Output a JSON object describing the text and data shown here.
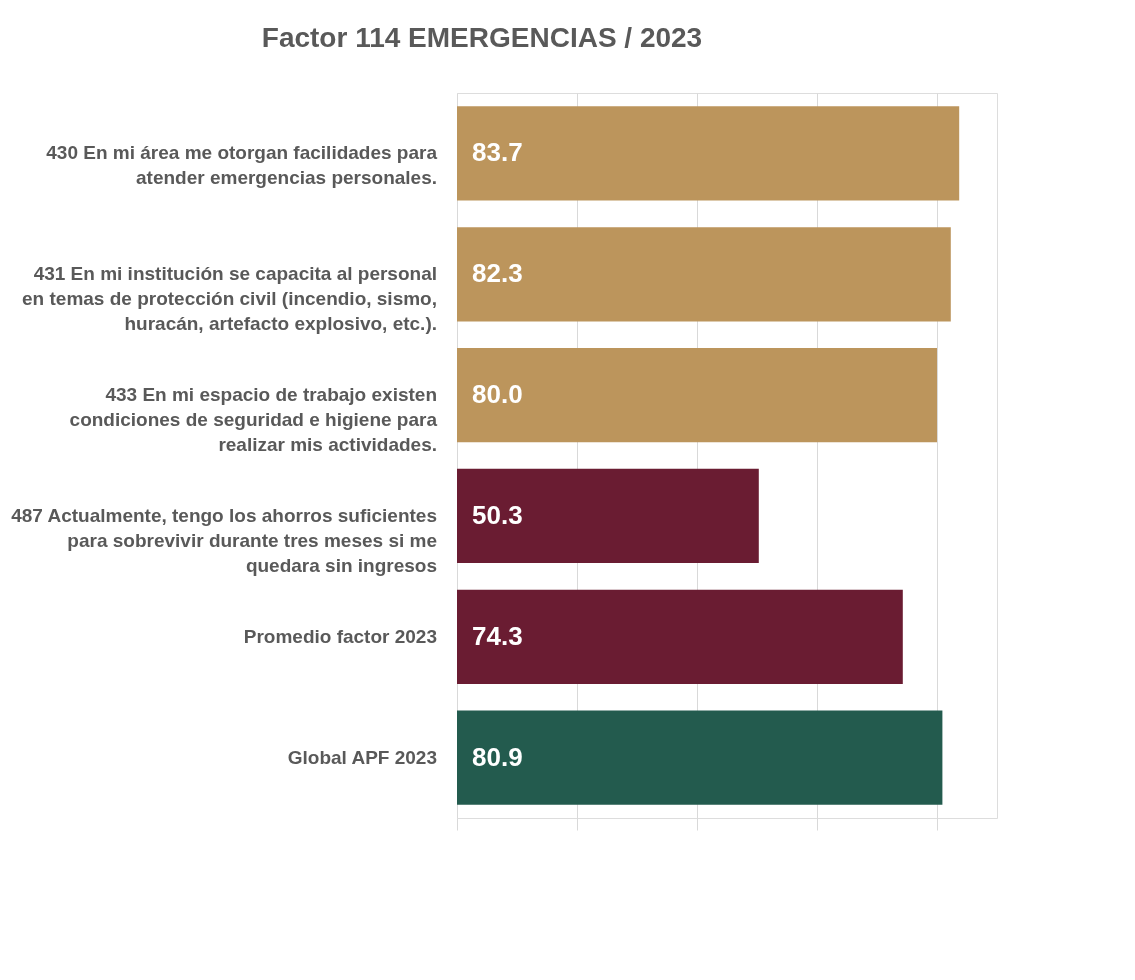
{
  "chart_data": {
    "type": "bar",
    "orientation": "horizontal",
    "title": "Factor 114 EMERGENCIAS / 2023",
    "categories": [
      "430 En mi área me otorgan facilidades para atender emergencias personales.",
      "431 En mi institución se capacita al personal en temas de protección civil (incendio, sismo, huracán, artefacto explosivo, etc.).",
      "433 En mi espacio de trabajo existen condiciones de seguridad e higiene para realizar mis actividades.",
      "487 Actualmente, tengo los ahorros suficientes para sobrevivir durante tres meses si me quedara sin ingresos",
      "Promedio factor 2023",
      "Global APF 2023"
    ],
    "values": [
      83.7,
      82.3,
      80.0,
      50.3,
      74.3,
      80.9
    ],
    "value_labels": [
      "83.7",
      "82.3",
      "80.0",
      "50.3",
      "74.3",
      "80.9"
    ],
    "colors": [
      "#bc955c",
      "#bc955c",
      "#bc955c",
      "#6a1c32",
      "#6a1c32",
      "#235b4e"
    ],
    "xlim": [
      0,
      90
    ],
    "xticks": [
      {
        "value": 0,
        "label": null
      },
      {
        "value": 20,
        "label": null
      },
      {
        "value": 40,
        "label": null
      },
      {
        "value": 60,
        "label": null
      },
      {
        "value": 80,
        "label": null
      }
    ],
    "grid": "x",
    "tick_labels": "y"
  }
}
